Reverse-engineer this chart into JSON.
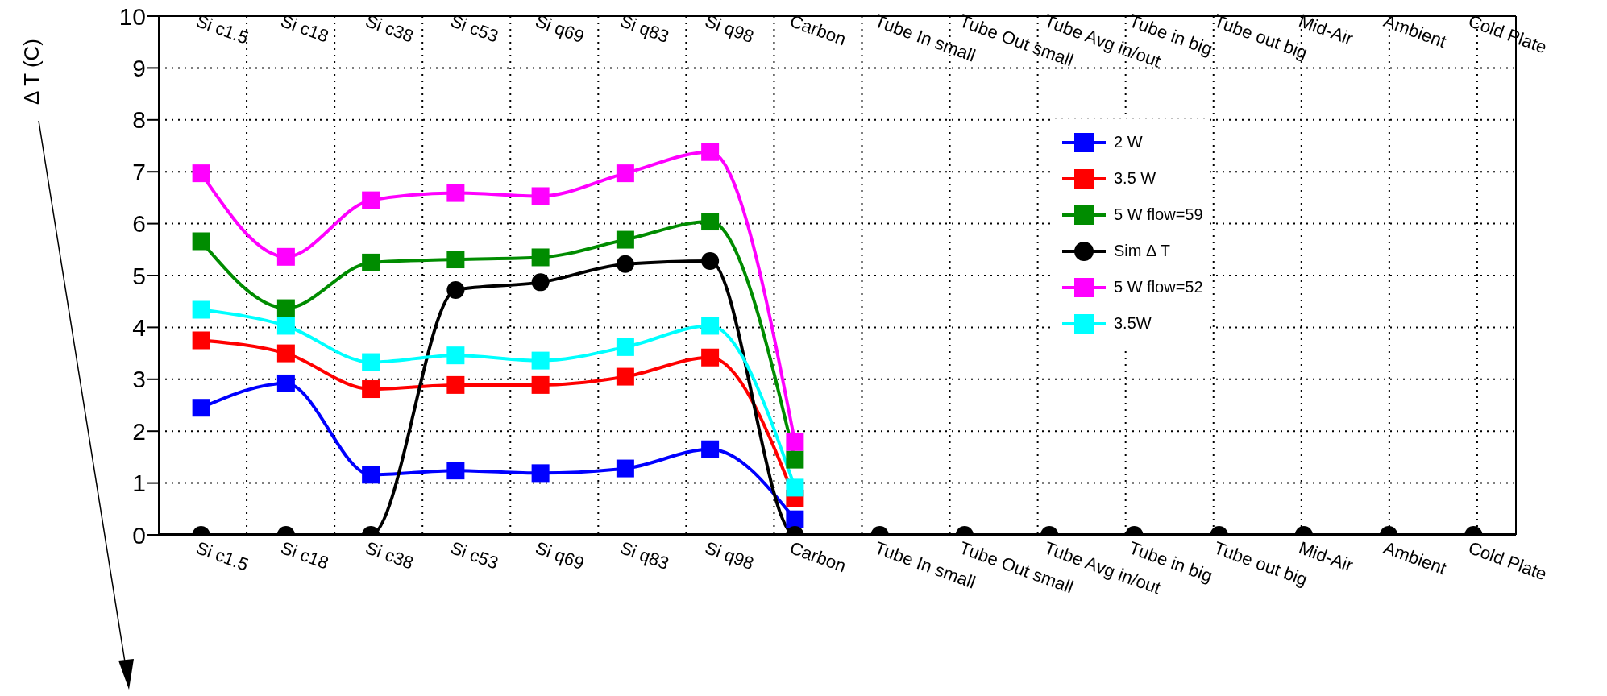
{
  "chart_data": {
    "type": "line",
    "ylabel": "Δ T (C)",
    "categories": [
      "Si c1.5",
      "Si c18",
      "Si c38",
      "Si c53",
      "Si q69",
      "Si q83",
      "Si q98",
      "Carbon",
      "Tube In small",
      "Tube Out small",
      "Tube Avg in/out",
      "Tube in big",
      "Tube out big",
      "Mid-Air",
      "Ambient",
      "Cold Plate"
    ],
    "series": [
      {
        "name": "2 W",
        "color": "#0000ff",
        "marker": "square",
        "values": [
          2.45,
          2.92,
          1.16,
          1.24,
          1.19,
          1.28,
          1.65,
          0.3,
          null,
          null,
          null,
          null,
          null,
          null,
          null,
          null
        ]
      },
      {
        "name": "3.5 W",
        "color": "#ff0000",
        "marker": "square",
        "values": [
          3.75,
          3.5,
          2.81,
          2.89,
          2.89,
          3.05,
          3.42,
          0.7,
          null,
          null,
          null,
          null,
          null,
          null,
          null,
          null
        ]
      },
      {
        "name": "5 W flow=59",
        "color": "#008c00",
        "marker": "square",
        "values": [
          5.66,
          4.37,
          5.25,
          5.31,
          5.35,
          5.69,
          6.04,
          1.45,
          null,
          null,
          null,
          null,
          null,
          null,
          null,
          null
        ]
      },
      {
        "name": "Sim Δ T",
        "color": "#000000",
        "marker": "circle",
        "values": [
          0,
          0,
          0,
          4.72,
          4.87,
          5.22,
          5.28,
          0,
          0,
          0,
          0,
          0,
          0,
          0,
          0,
          0
        ]
      },
      {
        "name": "5 W flow=52",
        "color": "#ff00ff",
        "marker": "square",
        "values": [
          6.97,
          5.36,
          6.45,
          6.59,
          6.53,
          6.97,
          7.38,
          1.79,
          null,
          null,
          null,
          null,
          null,
          null,
          null,
          null
        ]
      },
      {
        "name": "3.5W",
        "color": "#00ffff",
        "marker": "square",
        "values": [
          4.34,
          4.03,
          3.33,
          3.46,
          3.36,
          3.62,
          4.03,
          0.91,
          null,
          null,
          null,
          null,
          null,
          null,
          null,
          null
        ]
      }
    ],
    "ylim": [
      0,
      10
    ],
    "yticks": [
      0,
      1,
      2,
      3,
      4,
      5,
      6,
      7,
      8,
      9,
      10
    ],
    "grid": true,
    "legend": "top right",
    "line_style": "solid"
  }
}
